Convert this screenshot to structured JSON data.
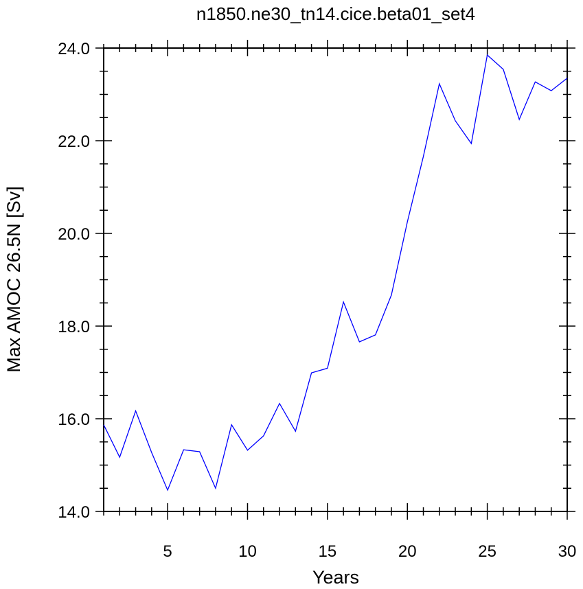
{
  "chart_data": {
    "type": "line",
    "title": "n1850.ne30_tn14.cice.beta01_set4",
    "xlabel": "Years",
    "ylabel": "Max AMOC 26.5N [Sv]",
    "xlim": [
      1,
      30
    ],
    "ylim": [
      14.0,
      24.0
    ],
    "x_ticks": [
      5,
      10,
      15,
      20,
      25,
      30
    ],
    "x_tick_labels": [
      "5",
      "10",
      "15",
      "20",
      "25",
      "30"
    ],
    "y_ticks": [
      14.0,
      16.0,
      18.0,
      20.0,
      22.0,
      24.0
    ],
    "y_tick_labels": [
      "14.0",
      "16.0",
      "18.0",
      "20.0",
      "22.0",
      "24.0"
    ],
    "grid": false,
    "line_color": "#0000ff",
    "series": [
      {
        "x": [
          1,
          2,
          3,
          4,
          5,
          6,
          7,
          8,
          9,
          10,
          11,
          12,
          13,
          14,
          15,
          16,
          17,
          18,
          19,
          20,
          21,
          22,
          23,
          24,
          25,
          26,
          27,
          28,
          29,
          30
        ],
        "values": [
          15.87,
          15.17,
          16.17,
          15.27,
          14.46,
          15.33,
          15.29,
          14.5,
          15.87,
          15.32,
          15.63,
          16.33,
          15.73,
          16.99,
          17.09,
          18.52,
          17.66,
          17.81,
          18.67,
          20.25,
          21.66,
          23.23,
          22.43,
          21.94,
          23.85,
          23.54,
          22.46,
          23.27,
          23.08,
          23.35
        ]
      }
    ]
  }
}
